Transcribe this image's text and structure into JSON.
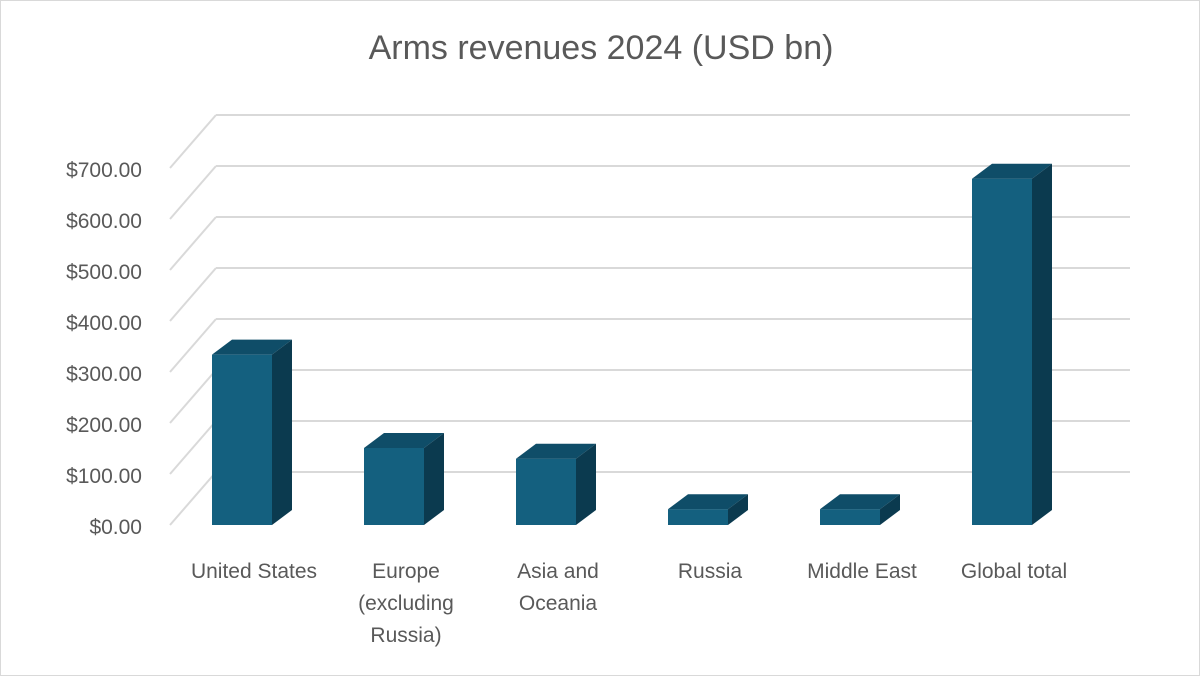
{
  "chart_data": {
    "type": "bar",
    "style": "3d-column",
    "title": "Arms revenues 2024 (USD bn)",
    "categories": [
      [
        "United States"
      ],
      [
        "Europe",
        "(excluding",
        "Russia)"
      ],
      [
        "Asia and",
        "Oceania"
      ],
      [
        "Russia"
      ],
      [
        "Middle East"
      ],
      [
        "Global total"
      ]
    ],
    "values": [
      334,
      151,
      130,
      31,
      31,
      679
    ],
    "y_ticks": [
      "$0.00",
      "$100.00",
      "$200.00",
      "$300.00",
      "$400.00",
      "$500.00",
      "$600.00",
      "$700.00"
    ],
    "ylim": [
      0,
      700
    ],
    "grid": true,
    "legend": "none",
    "colors": {
      "bar_front": "#14607f",
      "bar_top": "#0f4d68",
      "bar_side": "#0b3a4f",
      "grid": "#d9d9d9",
      "text": "#595959"
    }
  }
}
